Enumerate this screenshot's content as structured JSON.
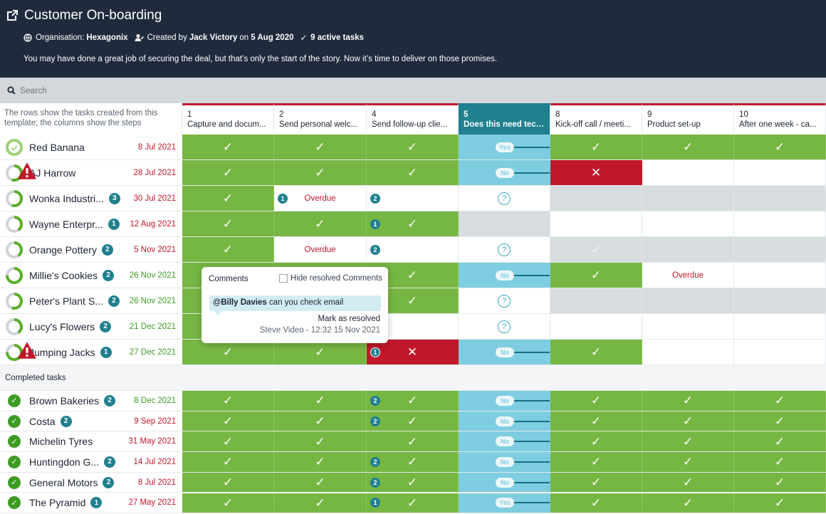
{
  "header": {
    "title": "Customer On-boarding",
    "organisation_label": "Organisation:",
    "organisation": "Hexagonix",
    "created_by_label": "Created by",
    "created_by": "Jack Victory",
    "created_on_label": "on",
    "created_on": "5 Aug 2020",
    "active_tasks": "9 active tasks",
    "description": "You may have done a great job of securing the deal, but that’s only the start of the story. Now it’s time to deliver on those promises."
  },
  "search": {
    "placeholder": "Search"
  },
  "corner_text": "The rows show the tasks created from this template; the columns show the steps",
  "columns": [
    {
      "num": "1",
      "label": "Capture and docum..."
    },
    {
      "num": "2",
      "label": "Send personal welc..."
    },
    {
      "num": "4",
      "label": "Send follow-up clie..."
    },
    {
      "num": "5",
      "label": "Does this need tech..."
    },
    {
      "num": "8",
      "label": "Kick-off call / meeti..."
    },
    {
      "num": "9",
      "label": "Product set-up"
    },
    {
      "num": "10",
      "label": "After one week - ca..."
    }
  ],
  "active_rows": [
    {
      "name": "Red Banana",
      "badge": "",
      "date": "8 Jul 2021",
      "date_color": "red",
      "ring": "done",
      "warn": false,
      "cells": [
        [
          "green",
          "tick"
        ],
        [
          "green",
          "tick"
        ],
        [
          "green",
          "tick"
        ],
        [
          "blue",
          "yes"
        ],
        [
          "green",
          "tick"
        ],
        [
          "green",
          "tick"
        ],
        [
          "green",
          "tick"
        ]
      ]
    },
    {
      "name": "AJ Harrow",
      "badge": "",
      "date": "28 Jul 2021",
      "date_color": "red",
      "ring": "half",
      "warn": true,
      "cells": [
        [
          "green",
          "tick"
        ],
        [
          "green",
          "tick"
        ],
        [
          "green",
          "tick"
        ],
        [
          "blue",
          "no"
        ],
        [
          "red",
          "cross"
        ],
        [
          "white",
          ""
        ],
        [
          "white",
          ""
        ]
      ]
    },
    {
      "name": "Wonka Industri...",
      "badge": "3",
      "date": "30 Jul 2021",
      "date_color": "red",
      "ring": "half",
      "warn": false,
      "cells": [
        [
          "green",
          "tick"
        ],
        [
          "white",
          "overdue",
          "1"
        ],
        [
          "white",
          "",
          "2"
        ],
        [
          "white",
          "q"
        ],
        [
          "grey",
          ""
        ],
        [
          "grey",
          ""
        ],
        [
          "grey",
          ""
        ]
      ]
    },
    {
      "name": "Wayne Enterpr...",
      "badge": "1",
      "date": "12 Aug 2021",
      "date_color": "red",
      "ring": "third",
      "warn": false,
      "cells": [
        [
          "green",
          "tick"
        ],
        [
          "green",
          "tick"
        ],
        [
          "green",
          "tick",
          "1"
        ],
        [
          "grey",
          ""
        ],
        [
          "white",
          ""
        ],
        [
          "white",
          ""
        ],
        [
          "white",
          ""
        ]
      ]
    },
    {
      "name": "Orange Pottery",
      "badge": "2",
      "date": "5 Nov 2021",
      "date_color": "red",
      "ring": "third",
      "warn": false,
      "cells": [
        [
          "green",
          "tick"
        ],
        [
          "white",
          "overdue"
        ],
        [
          "white",
          "",
          "2"
        ],
        [
          "white",
          "q"
        ],
        [
          "grey",
          "faint"
        ],
        [
          "grey",
          ""
        ],
        [
          "grey",
          ""
        ]
      ]
    },
    {
      "name": "Millie's Cookies",
      "badge": "2",
      "date": "26 Nov 2021",
      "date_color": "green",
      "ring": "most",
      "warn": false,
      "cells": [
        [
          "green",
          "tick"
        ],
        [
          "green",
          "tick"
        ],
        [
          "green",
          "tick"
        ],
        [
          "blue",
          "no"
        ],
        [
          "green",
          "tick"
        ],
        [
          "white",
          "overdue"
        ],
        [
          "white",
          ""
        ]
      ]
    },
    {
      "name": "Peter's Plant S...",
      "badge": "2",
      "date": "26 Nov 2021",
      "date_color": "green",
      "ring": "half",
      "warn": false,
      "cells": [
        [
          "green",
          "tick"
        ],
        [
          "green",
          "tick"
        ],
        [
          "green",
          "tick"
        ],
        [
          "white",
          "q"
        ],
        [
          "grey",
          ""
        ],
        [
          "grey",
          ""
        ],
        [
          "grey",
          ""
        ]
      ]
    },
    {
      "name": "Lucy's Flowers",
      "badge": "2",
      "date": "21 Dec 2021",
      "date_color": "green",
      "ring": "third",
      "warn": false,
      "cells": [
        [
          "green",
          "tick"
        ],
        [
          "green",
          "tick"
        ],
        [
          "white",
          ""
        ],
        [
          "white",
          "q"
        ],
        [
          "white",
          ""
        ],
        [
          "white",
          ""
        ],
        [
          "white",
          ""
        ]
      ]
    },
    {
      "name": "Jumping Jacks",
      "badge": "1",
      "date": "27 Dec 2021",
      "date_color": "green",
      "ring": "most",
      "warn": true,
      "cells": [
        [
          "green",
          "tick"
        ],
        [
          "green",
          "tick"
        ],
        [
          "red",
          "cross",
          "1"
        ],
        [
          "blue",
          "no"
        ],
        [
          "green",
          "tick"
        ],
        [
          "white",
          ""
        ],
        [
          "white",
          ""
        ]
      ]
    }
  ],
  "completed_label": "Completed tasks",
  "completed_rows": [
    {
      "name": "Brown Bakeries",
      "badge": "2",
      "date": "8 Dec 2021",
      "date_color": "green",
      "cells": [
        [
          "green",
          "tick"
        ],
        [
          "green",
          "tick"
        ],
        [
          "green",
          "tick",
          "2"
        ],
        [
          "blue",
          "no"
        ],
        [
          "green",
          "tick"
        ],
        [
          "green",
          "tick"
        ],
        [
          "green",
          "tick"
        ]
      ]
    },
    {
      "name": "Costa",
      "badge": "2",
      "date": "9 Sep 2021",
      "date_color": "red",
      "cells": [
        [
          "green",
          "tick"
        ],
        [
          "green",
          "tick"
        ],
        [
          "green",
          "tick",
          "2"
        ],
        [
          "blue",
          "no"
        ],
        [
          "green",
          "tick"
        ],
        [
          "green",
          "tick"
        ],
        [
          "green",
          "tick"
        ]
      ]
    },
    {
      "name": "Michelin Tyres",
      "badge": "",
      "date": "31 May 2021",
      "date_color": "red",
      "cells": [
        [
          "green",
          "tick"
        ],
        [
          "green",
          "tick"
        ],
        [
          "green",
          "tick"
        ],
        [
          "blue",
          "no"
        ],
        [
          "green",
          "tick"
        ],
        [
          "green",
          "tick"
        ],
        [
          "green",
          "tick"
        ]
      ]
    },
    {
      "name": "Huntingdon G...",
      "badge": "2",
      "date": "14 Jul 2021",
      "date_color": "red",
      "cells": [
        [
          "green",
          "tick"
        ],
        [
          "green",
          "tick"
        ],
        [
          "green",
          "tick",
          "2"
        ],
        [
          "blue",
          "no"
        ],
        [
          "green",
          "tick"
        ],
        [
          "green",
          "tick"
        ],
        [
          "green",
          "tick"
        ]
      ]
    },
    {
      "name": "General Motors",
      "badge": "2",
      "date": "8 Jul 2021",
      "date_color": "red",
      "cells": [
        [
          "green",
          "tick"
        ],
        [
          "green",
          "tick"
        ],
        [
          "green",
          "tick",
          "2"
        ],
        [
          "blue",
          "no"
        ],
        [
          "green",
          "tick"
        ],
        [
          "green",
          "tick"
        ],
        [
          "green",
          "tick"
        ]
      ]
    },
    {
      "name": "The Pyramid",
      "badge": "1",
      "date": "27 May 2021",
      "date_color": "red",
      "cells": [
        [
          "green",
          "tick"
        ],
        [
          "green",
          "tick"
        ],
        [
          "green",
          "tick",
          "1"
        ],
        [
          "blue",
          "yes"
        ],
        [
          "green",
          "tick"
        ],
        [
          "green",
          "tick"
        ],
        [
          "green",
          "tick"
        ]
      ]
    }
  ],
  "toggle_labels": {
    "yes": "Yes",
    "no": "No"
  },
  "overdue_label": "Overdue",
  "tick_glyph": "✓",
  "cross_glyph": "✕",
  "question_glyph": "?",
  "popover": {
    "title": "Comments",
    "hide_label": "Hide resolved Comments",
    "mention": "@Billy Davies",
    "comment": "can you check email",
    "resolve_label": "Mark as resolved",
    "author_time": "Steve Video - 12:32 15 Nov 2021"
  },
  "colors": {
    "header_bg": "#1f2b3d",
    "green": "#76b743",
    "red": "#c0182a",
    "teal": "#20808f",
    "light_blue": "#7fcde0",
    "grey": "#d7dcdf"
  }
}
